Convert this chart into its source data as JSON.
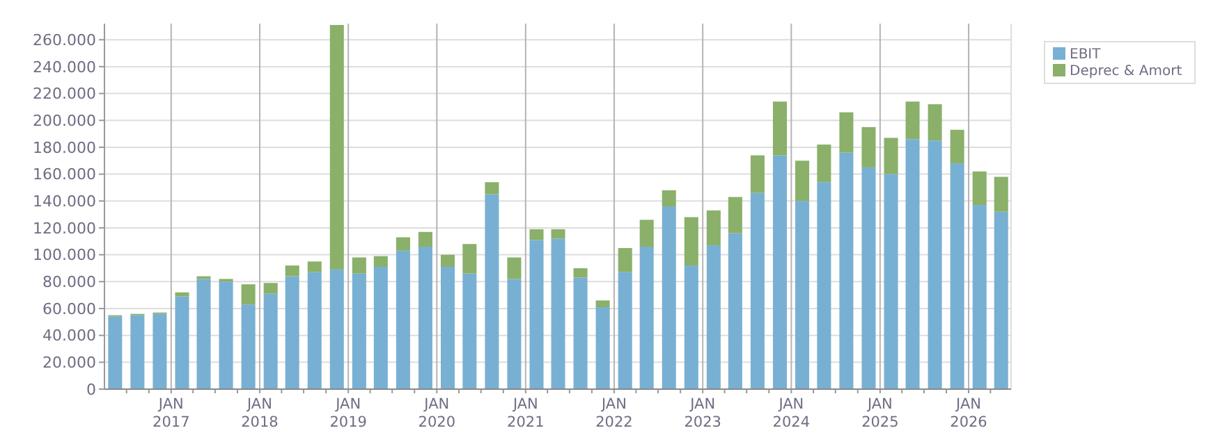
{
  "chart_data": {
    "type": "bar",
    "stacked": true,
    "x": [
      "2016-05-15",
      "2016-08-15",
      "2016-11-15",
      "2017-02-15",
      "2017-05-15",
      "2017-08-15",
      "2017-11-15",
      "2018-02-15",
      "2018-05-15",
      "2018-08-15",
      "2018-11-15",
      "2019-02-15",
      "2019-05-15",
      "2019-08-15",
      "2019-11-15",
      "2020-02-15",
      "2020-05-15",
      "2020-08-15",
      "2020-11-15",
      "2021-02-15",
      "2021-05-15",
      "2021-08-15",
      "2021-11-15",
      "2022-02-15",
      "2022-05-15",
      "2022-08-15",
      "2022-11-15",
      "2023-02-15",
      "2023-05-15",
      "2023-08-15",
      "2023-11-15",
      "2024-02-15",
      "2024-05-15",
      "2024-08-15",
      "2024-11-15",
      "2025-02-15",
      "2025-05-15",
      "2025-08-15",
      "2025-11-15",
      "2026-02-15",
      "2026-05-15"
    ],
    "series": [
      {
        "name": "EBIT",
        "color": "#78b0d3",
        "values": [
          54000,
          55000,
          56000,
          69000,
          82000,
          80000,
          63000,
          71000,
          84000,
          87000,
          89000,
          86000,
          91000,
          103000,
          106000,
          91000,
          86000,
          145000,
          82000,
          111000,
          112000,
          83000,
          61000,
          87000,
          106000,
          136000,
          92000,
          107000,
          116000,
          146000,
          174000,
          140000,
          154000,
          176000,
          165000,
          160000,
          186000,
          185000,
          168000,
          137000,
          132000
        ]
      },
      {
        "name": "Deprec & Amort",
        "color": "#8ab06a",
        "values": [
          1000,
          1000,
          1000,
          3000,
          2000,
          2000,
          15000,
          8000,
          8000,
          8000,
          182000,
          12000,
          8000,
          10000,
          11000,
          9000,
          22000,
          9000,
          16000,
          8000,
          7000,
          7000,
          5000,
          18000,
          20000,
          12000,
          36000,
          26000,
          27000,
          28000,
          40000,
          30000,
          28000,
          30000,
          30000,
          27000,
          28000,
          27000,
          25000,
          25000,
          26000
        ]
      }
    ],
    "xlim": [
      "2016-04-01",
      "2026-06-25"
    ],
    "xticks": [
      {
        "value": "2016-07-01",
        "label": null
      },
      {
        "value": "2016-10-01",
        "label": null
      },
      {
        "value": "2017-01-01",
        "label": "JAN\n2017"
      },
      {
        "value": "2017-04-01",
        "label": null
      },
      {
        "value": "2017-07-01",
        "label": null
      },
      {
        "value": "2017-10-01",
        "label": null
      },
      {
        "value": "2018-01-01",
        "label": "JAN\n2018"
      },
      {
        "value": "2018-04-01",
        "label": null
      },
      {
        "value": "2018-07-01",
        "label": null
      },
      {
        "value": "2018-10-01",
        "label": null
      },
      {
        "value": "2019-01-01",
        "label": "JAN\n2019"
      },
      {
        "value": "2019-04-01",
        "label": null
      },
      {
        "value": "2019-07-01",
        "label": null
      },
      {
        "value": "2019-10-01",
        "label": null
      },
      {
        "value": "2020-01-01",
        "label": "JAN\n2020"
      },
      {
        "value": "2020-04-01",
        "label": null
      },
      {
        "value": "2020-07-01",
        "label": null
      },
      {
        "value": "2020-10-01",
        "label": null
      },
      {
        "value": "2021-01-01",
        "label": "JAN\n2021"
      },
      {
        "value": "2021-04-01",
        "label": null
      },
      {
        "value": "2021-07-01",
        "label": null
      },
      {
        "value": "2021-10-01",
        "label": null
      },
      {
        "value": "2022-01-01",
        "label": "JAN\n2022"
      },
      {
        "value": "2022-04-01",
        "label": null
      },
      {
        "value": "2022-07-01",
        "label": null
      },
      {
        "value": "2022-10-01",
        "label": null
      },
      {
        "value": "2023-01-01",
        "label": "JAN\n2023"
      },
      {
        "value": "2023-04-01",
        "label": null
      },
      {
        "value": "2023-07-01",
        "label": null
      },
      {
        "value": "2023-10-01",
        "label": null
      },
      {
        "value": "2024-01-01",
        "label": "JAN\n2024"
      },
      {
        "value": "2024-04-01",
        "label": null
      },
      {
        "value": "2024-07-01",
        "label": null
      },
      {
        "value": "2024-10-01",
        "label": null
      },
      {
        "value": "2025-01-01",
        "label": "JAN\n2025"
      },
      {
        "value": "2025-04-01",
        "label": null
      },
      {
        "value": "2025-07-01",
        "label": null
      },
      {
        "value": "2025-10-01",
        "label": null
      },
      {
        "value": "2026-01-01",
        "label": "JAN\n2026"
      },
      {
        "value": "2026-04-01",
        "label": null
      }
    ],
    "ylim": [
      0,
      272000
    ],
    "yticks": [
      0,
      {
        "value": 20000,
        "label": "20.000"
      },
      {
        "value": 40000,
        "label": "40.000"
      },
      {
        "value": 60000,
        "label": "60.000"
      },
      {
        "value": 80000,
        "label": "80.000"
      },
      {
        "value": 100000,
        "label": "100.000"
      },
      {
        "value": 120000,
        "label": "120.000"
      },
      {
        "value": 140000,
        "label": "140.000"
      },
      {
        "value": 160000,
        "label": "160.000"
      },
      {
        "value": 180000,
        "label": "180.000"
      },
      {
        "value": 200000,
        "label": "200.000"
      },
      {
        "value": 220000,
        "label": "220.000"
      },
      {
        "value": 240000,
        "label": "240.000"
      },
      {
        "value": 260000,
        "label": "260.000"
      }
    ],
    "grid": true,
    "legend": "top right"
  }
}
